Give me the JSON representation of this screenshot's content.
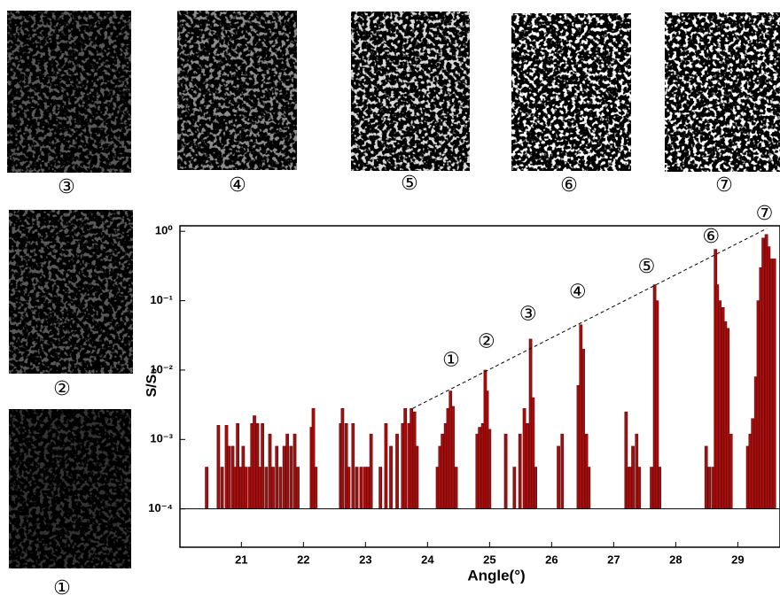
{
  "chart_data": {
    "type": "bar",
    "scale_y": "log",
    "color": "#a30e0e",
    "xlabel": "Angle(°)",
    "ylabel": "S/S₀",
    "xlim": [
      20.01,
      29.68
    ],
    "ylim": [
      2.8e-05,
      1.2
    ],
    "xticks": [
      21,
      22,
      23,
      24,
      25,
      26,
      27,
      28,
      29
    ],
    "yticks": [
      {
        "value": 0.0001,
        "label": "10⁻⁴"
      },
      {
        "value": 0.001,
        "label": "10⁻³"
      },
      {
        "value": 0.01,
        "label": "10⁻²"
      },
      {
        "value": 0.1,
        "label": "10⁻¹"
      },
      {
        "value": 1,
        "label": "10⁰"
      }
    ],
    "baseline": 0.0001,
    "x": [
      20.44,
      20.63,
      20.69,
      20.76,
      20.8,
      20.86,
      20.9,
      20.94,
      20.99,
      21.03,
      21.07,
      21.13,
      21.17,
      21.21,
      21.26,
      21.3,
      21.34,
      21.4,
      21.46,
      21.51,
      21.57,
      21.63,
      21.69,
      21.74,
      21.8,
      21.86,
      21.91,
      22.13,
      22.16,
      22.2,
      22.6,
      22.63,
      22.69,
      22.73,
      22.8,
      22.86,
      22.93,
      22.99,
      23.04,
      23.09,
      23.24,
      23.33,
      23.41,
      23.51,
      23.6,
      23.64,
      23.7,
      23.74,
      23.79,
      23.83,
      24.16,
      24.2,
      24.24,
      24.29,
      24.33,
      24.37,
      24.41,
      24.46,
      24.8,
      24.84,
      24.89,
      24.93,
      24.96,
      25.0,
      25.26,
      25.4,
      25.49,
      25.56,
      25.61,
      25.66,
      25.7,
      25.74,
      26.11,
      26.17,
      26.43,
      26.47,
      26.51,
      26.56,
      26.6,
      27.2,
      27.23,
      27.27,
      27.31,
      27.37,
      27.41,
      27.61,
      27.66,
      27.7,
      27.74,
      28.49,
      28.54,
      28.6,
      28.64,
      28.67,
      28.71,
      28.76,
      28.8,
      28.84,
      28.89,
      29.16,
      29.2,
      29.24,
      29.29,
      29.33,
      29.37,
      29.41,
      29.46,
      29.5,
      29.54,
      29.59
    ],
    "values": [
      0.0004,
      0.0016,
      0.0004,
      0.0016,
      0.0008,
      0.0008,
      0.0004,
      0.0017,
      0.0004,
      0.0008,
      0.0004,
      0.0004,
      0.0017,
      0.0022,
      0.0017,
      0.0004,
      0.0017,
      0.0004,
      0.0012,
      0.0004,
      0.0008,
      0.0004,
      0.0008,
      0.0012,
      0.0008,
      0.0012,
      0.0004,
      0.0015,
      0.0028,
      0.0004,
      0.0017,
      0.0028,
      0.0017,
      0.0004,
      0.0017,
      0.0004,
      0.0004,
      0.0004,
      0.0004,
      0.0012,
      0.0004,
      0.0017,
      0.0008,
      0.0012,
      0.0017,
      0.0028,
      0.0017,
      0.0028,
      0.0025,
      0.0008,
      0.0004,
      0.0008,
      0.0012,
      0.0017,
      0.0028,
      0.005,
      0.003,
      0.0004,
      0.0012,
      0.0015,
      0.0017,
      0.01,
      0.005,
      0.0014,
      0.0012,
      0.0004,
      0.0012,
      0.0028,
      0.0017,
      0.028,
      0.004,
      0.0004,
      0.0008,
      0.0012,
      0.006,
      0.045,
      0.02,
      0.0012,
      0.0004,
      0.0025,
      0.0004,
      0.0004,
      0.0008,
      0.0012,
      0.0004,
      0.0004,
      0.17,
      0.1,
      0.0004,
      0.0008,
      0.0004,
      0.0004,
      0.55,
      0.17,
      0.1,
      0.08,
      0.05,
      0.04,
      0.0012,
      0.0008,
      0.0012,
      0.002,
      0.008,
      0.1,
      0.3,
      0.8,
      0.9,
      0.6,
      0.4,
      0.4
    ],
    "trend_line": {
      "x": [
        23.76,
        29.47
      ],
      "y": [
        0.0028,
        1.1
      ]
    },
    "annotations": [
      {
        "text": "①",
        "x": 24.38,
        "y": 0.0135
      },
      {
        "text": "②",
        "x": 24.95,
        "y": 0.025
      },
      {
        "text": "③",
        "x": 25.62,
        "y": 0.062
      },
      {
        "text": "④",
        "x": 26.42,
        "y": 0.13
      },
      {
        "text": "⑤",
        "x": 27.53,
        "y": 0.3
      },
      {
        "text": "⑥",
        "x": 28.57,
        "y": 0.82
      },
      {
        "text": "⑦",
        "x": 29.43,
        "y": 1.75
      }
    ]
  },
  "panels": [
    {
      "label": "③"
    },
    {
      "label": "④"
    },
    {
      "label": "⑤"
    },
    {
      "label": "⑥"
    },
    {
      "label": "⑦"
    },
    {
      "label": "②"
    },
    {
      "label": "①"
    }
  ]
}
